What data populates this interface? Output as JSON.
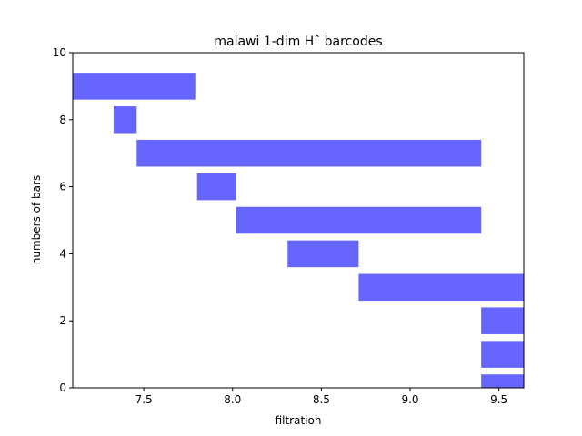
{
  "chart_data": {
    "type": "barcode",
    "title": "malawi 1-dim Hˆ barcodes",
    "x_label": "filtration",
    "y_label": "numbers of bars",
    "color": "#6666ff",
    "bar_height": 0.8,
    "bars": [
      {
        "y": 9,
        "start": 7.1,
        "end": 7.79
      },
      {
        "y": 8,
        "start": 7.33,
        "end": 7.46
      },
      {
        "y": 7,
        "start": 7.46,
        "end": 9.4
      },
      {
        "y": 6,
        "start": 7.8,
        "end": 8.02
      },
      {
        "y": 5,
        "start": 8.02,
        "end": 9.4
      },
      {
        "y": 4,
        "start": 8.31,
        "end": 8.71
      },
      {
        "y": 3,
        "start": 8.71,
        "end": 9.64
      },
      {
        "y": 2,
        "start": 9.4,
        "end": 9.64
      },
      {
        "y": 1,
        "start": 9.4,
        "end": 9.64
      },
      {
        "y": 0,
        "start": 9.4,
        "end": 9.64
      }
    ],
    "xlim": [
      7.1,
      9.64
    ],
    "ylim": [
      0,
      10
    ],
    "xticks": [
      7.5,
      {
        "value": 8,
        "label": "8.0"
      },
      8.5,
      {
        "value": 9,
        "label": "9.0"
      },
      9.5
    ],
    "yticks": [
      0,
      2,
      4,
      6,
      8,
      10
    ]
  }
}
